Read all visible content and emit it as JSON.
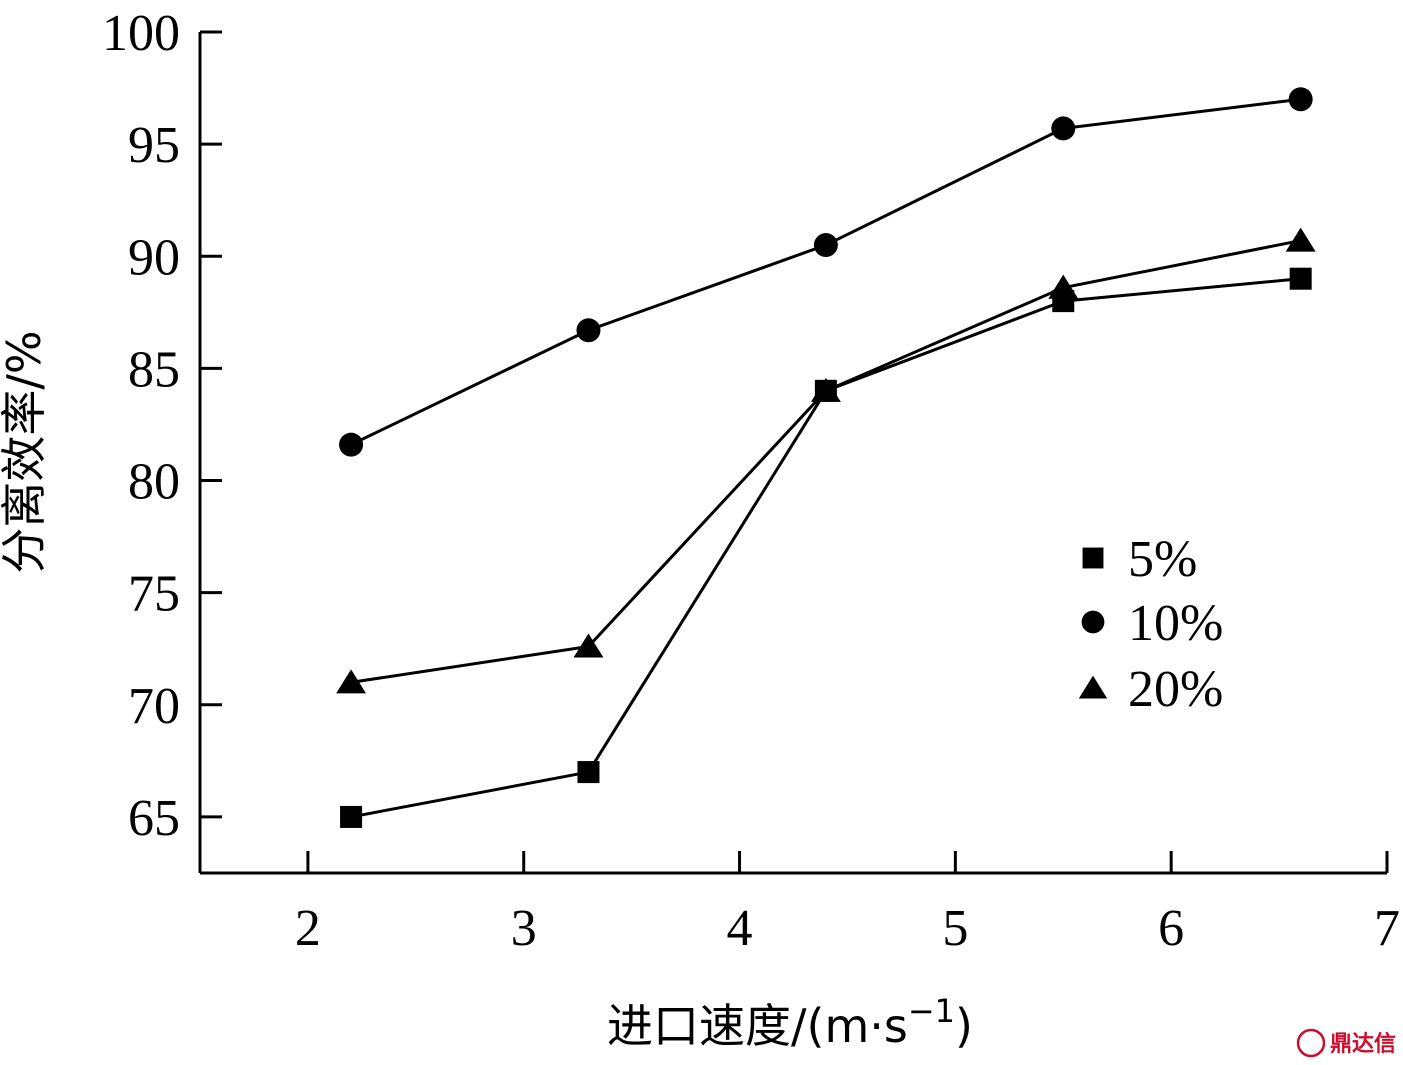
{
  "chart_data": {
    "type": "line",
    "title": "",
    "xlabel": "进口速度/(m·s",
    "xlabel_sup": "−1",
    "xlabel_end": ")",
    "ylabel": "分离效率/%",
    "xlim": [
      1.5,
      7
    ],
    "ylim": [
      62.5,
      100
    ],
    "xticks": [
      2,
      3,
      4,
      5,
      6,
      7
    ],
    "yticks": [
      65,
      70,
      75,
      80,
      85,
      90,
      95,
      100
    ],
    "grid": false,
    "legend_position": "right",
    "x": [
      2.2,
      3.3,
      4.4,
      5.5,
      6.6
    ],
    "series": [
      {
        "name": "5%",
        "marker": "square",
        "values": [
          65.0,
          67.0,
          84.0,
          88.0,
          89.0
        ]
      },
      {
        "name": "10%",
        "marker": "circle",
        "values": [
          81.6,
          86.7,
          90.5,
          95.7,
          97.0
        ]
      },
      {
        "name": "20%",
        "marker": "triangle",
        "values": [
          71.0,
          72.6,
          84.0,
          88.6,
          90.7
        ]
      }
    ]
  },
  "watermark": {
    "text": "鼎达信",
    "color": "#c8102e"
  }
}
